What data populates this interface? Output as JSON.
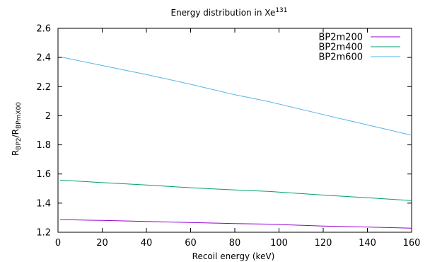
{
  "chart_data": {
    "type": "line",
    "title": "Energy distribution in Xe",
    "title_superscript": "131",
    "xlabel": "Recoil energy (keV)",
    "ylabel_main": "R",
    "ylabel_sub1": "BP2",
    "ylabel_sep": "/R",
    "ylabel_sub2": "BPmX00",
    "xlim": [
      0,
      160
    ],
    "ylim": [
      1.2,
      2.6
    ],
    "xticks": [
      0,
      20,
      40,
      60,
      80,
      100,
      120,
      140,
      160
    ],
    "yticks": [
      1.2,
      1.4,
      1.6,
      1.8,
      2,
      2.2,
      2.4,
      2.6
    ],
    "xtick_labels": [
      "0",
      "20",
      "40",
      "60",
      "80",
      "100",
      "120",
      "140",
      "160"
    ],
    "ytick_labels": [
      "1.2",
      "1.4",
      "1.6",
      "1.8",
      "2",
      "2.2",
      "2.4",
      "2.6"
    ],
    "grid": false,
    "legend_position": "top-right",
    "series": [
      {
        "name": "BP2m200",
        "color": "#9400d3",
        "x": [
          1,
          20,
          40,
          60,
          80,
          95,
          120,
          140,
          160
        ],
        "y": [
          1.287,
          1.281,
          1.274,
          1.267,
          1.26,
          1.256,
          1.243,
          1.236,
          1.228
        ]
      },
      {
        "name": "BP2m400",
        "color": "#009e73",
        "x": [
          1,
          20,
          40,
          60,
          80,
          95,
          120,
          140,
          160
        ],
        "y": [
          1.558,
          1.541,
          1.524,
          1.506,
          1.49,
          1.481,
          1.455,
          1.437,
          1.418
        ]
      },
      {
        "name": "BP2m600",
        "color": "#56b4e9",
        "x": [
          1,
          20,
          40,
          60,
          80,
          95,
          120,
          140,
          160
        ],
        "y": [
          2.404,
          2.345,
          2.283,
          2.216,
          2.144,
          2.098,
          2.008,
          1.937,
          1.866
        ]
      }
    ]
  }
}
